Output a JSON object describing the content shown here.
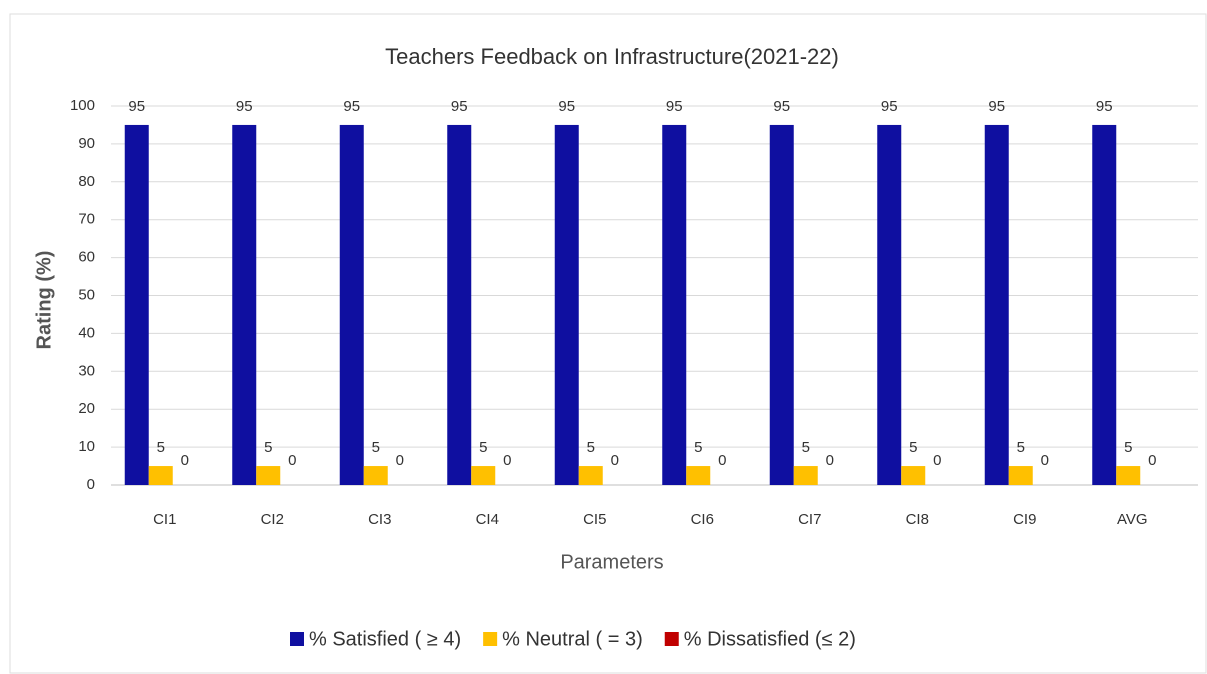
{
  "chart_data": {
    "type": "bar",
    "title": "Teachers Feedback on Infrastructure(2021-22)",
    "x_label": "Parameters",
    "y_label": "Rating (%)",
    "categories": [
      "CI1",
      "CI2",
      "CI3",
      "CI4",
      "CI5",
      "CI6",
      "CI7",
      "CI8",
      "CI9",
      "AVG"
    ],
    "series": [
      {
        "name": "% Satisfied ( ≥ 4)",
        "color": "#0f0fa0",
        "values": [
          95,
          95,
          95,
          95,
          95,
          95,
          95,
          95,
          95,
          95
        ]
      },
      {
        "name": "% Neutral  ( = 3)",
        "color": "#ffc000",
        "values": [
          5,
          5,
          5,
          5,
          5,
          5,
          5,
          5,
          5,
          5
        ]
      },
      {
        "name": "% Dissatisfied (≤ 2)",
        "color": "#c00000",
        "values": [
          0,
          0,
          0,
          0,
          0,
          0,
          0,
          0,
          0,
          0
        ]
      }
    ],
    "ylim": [
      0,
      100
    ],
    "yticks": [
      0,
      10,
      20,
      30,
      40,
      50,
      60,
      70,
      80,
      90,
      100
    ],
    "grid": true,
    "legend": "bottom"
  }
}
